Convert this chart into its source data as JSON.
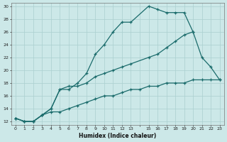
{
  "bg_color": "#cce8e8",
  "grid_color": "#aacfcf",
  "line_color": "#1a6b6b",
  "xlabel": "Humidex (Indice chaleur)",
  "xlim": [
    -0.5,
    23.5
  ],
  "ylim": [
    11.5,
    30.5
  ],
  "xticks": [
    0,
    1,
    2,
    3,
    4,
    5,
    6,
    7,
    8,
    9,
    10,
    11,
    12,
    13,
    14,
    15,
    16,
    17,
    18,
    19,
    20,
    21,
    22,
    23
  ],
  "xtick_labels": [
    "0",
    "1",
    "2",
    "3",
    "4",
    "5",
    "6",
    "7",
    "8",
    "9",
    "10",
    "11",
    "12",
    "13",
    "",
    "15",
    "16",
    "17",
    "18",
    "19",
    "20",
    "21",
    "22",
    "23"
  ],
  "yticks": [
    12,
    14,
    16,
    18,
    20,
    22,
    24,
    26,
    28,
    30
  ],
  "curve1_x": [
    0,
    1,
    2,
    3,
    4,
    5,
    6,
    7,
    8,
    9,
    10,
    11,
    12,
    13,
    15,
    16,
    17,
    18,
    19,
    20,
    21,
    22,
    23
  ],
  "curve1_y": [
    12.5,
    12.0,
    12.0,
    13.0,
    14.0,
    17.0,
    17.0,
    18.0,
    19.5,
    22.5,
    24.0,
    26.0,
    27.5,
    27.5,
    30.0,
    29.5,
    29.0,
    29.0,
    29.0,
    26.0,
    22.0,
    20.5,
    18.5
  ],
  "curve2_x": [
    0,
    1,
    2,
    3,
    4,
    5,
    6,
    7,
    8,
    9,
    10,
    11,
    12,
    13,
    15,
    16,
    17,
    18,
    19,
    20
  ],
  "curve2_y": [
    12.5,
    12.0,
    12.0,
    13.0,
    14.0,
    17.0,
    17.5,
    17.5,
    18.0,
    19.0,
    19.5,
    20.0,
    20.5,
    21.0,
    22.0,
    22.5,
    23.5,
    24.5,
    25.5,
    26.0
  ],
  "curve3_x": [
    0,
    1,
    2,
    3,
    4,
    5,
    6,
    7,
    8,
    9,
    10,
    11,
    12,
    13,
    14,
    15,
    16,
    17,
    18,
    19,
    20,
    21,
    22,
    23
  ],
  "curve3_y": [
    12.5,
    12.0,
    12.0,
    13.0,
    13.5,
    13.5,
    14.0,
    14.5,
    15.0,
    15.5,
    16.0,
    16.0,
    16.5,
    17.0,
    17.0,
    17.5,
    17.5,
    18.0,
    18.0,
    18.0,
    18.5,
    18.5,
    18.5,
    18.5
  ]
}
